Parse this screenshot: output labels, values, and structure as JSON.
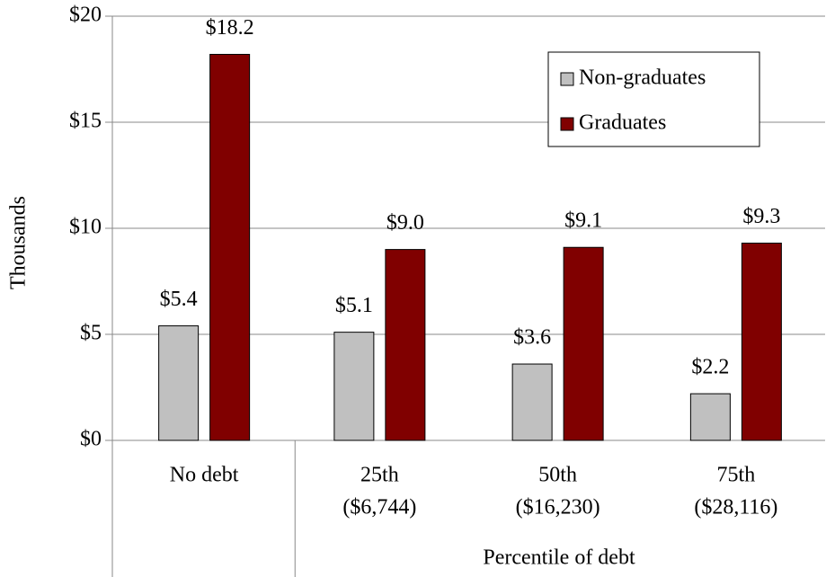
{
  "chart_data": {
    "type": "bar",
    "y_label": "Thousands",
    "x_label": "Percentile of debt",
    "categories": [
      [
        "No debt"
      ],
      [
        "25th",
        "($6,744)"
      ],
      [
        "50th",
        "($16,230)"
      ],
      [
        "75th",
        "($28,116)"
      ]
    ],
    "series": [
      {
        "name": "Non-graduates",
        "color": "#c0c0c0",
        "values": [
          5.4,
          5.1,
          3.6,
          2.2
        ],
        "value_labels": [
          "$5.4",
          "$5.1",
          "$3.6",
          "$2.2"
        ]
      },
      {
        "name": "Graduates",
        "color": "#800000",
        "values": [
          18.2,
          9.0,
          9.1,
          9.3
        ],
        "value_labels": [
          "$18.2",
          "$9.0",
          "$9.1",
          "$9.3"
        ]
      }
    ],
    "ylim": [
      0,
      20
    ],
    "yticks": [
      {
        "value": 0,
        "label": "$0"
      },
      {
        "value": 5,
        "label": "$5"
      },
      {
        "value": 10,
        "label": "$10"
      },
      {
        "value": 15,
        "label": "$15"
      },
      {
        "value": 20,
        "label": "$20"
      }
    ],
    "grid": true,
    "legend": "top-right"
  }
}
